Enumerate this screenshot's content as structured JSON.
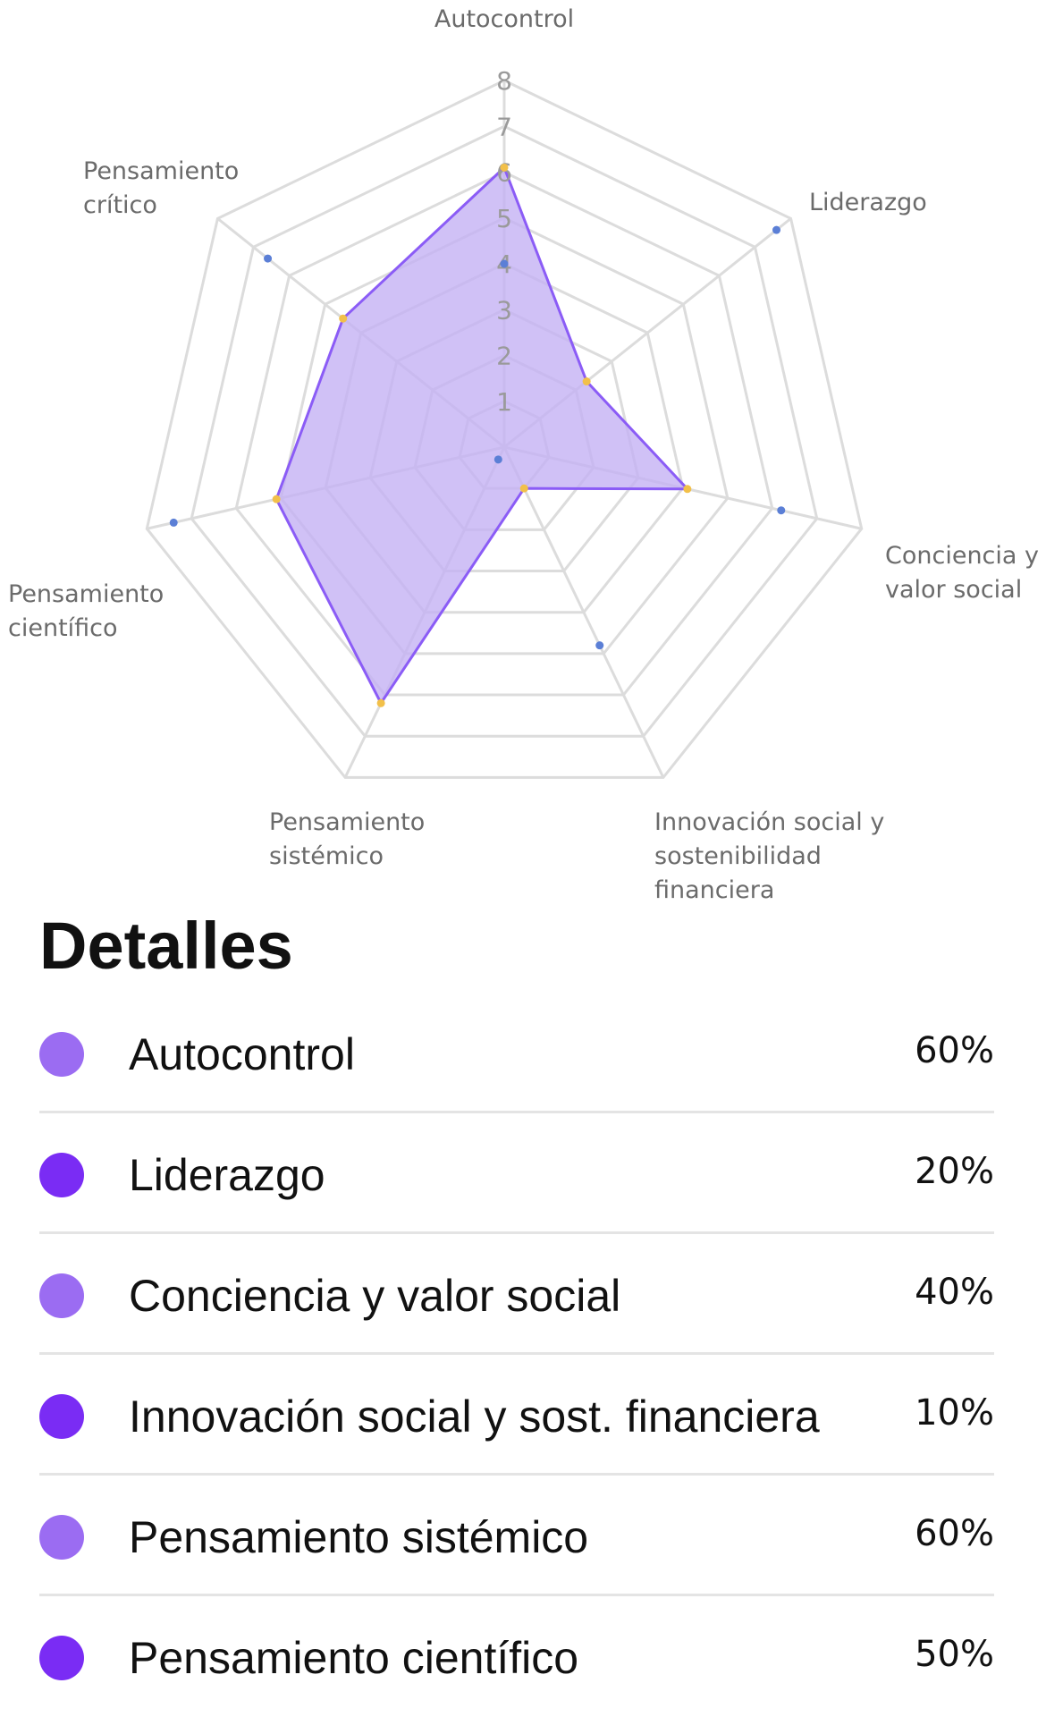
{
  "chart_data": {
    "type": "radar",
    "axes": [
      "Autocontrol",
      "Liderazgo",
      "Conciencia y valor social",
      "Innovación social y sostenibilidad financiera",
      "Pensamiento sistémico",
      "Pensamiento científico",
      "Pensamiento crítico"
    ],
    "axis_label_lines": [
      [
        "Autocontrol"
      ],
      [
        "Liderazgo"
      ],
      [
        "Conciencia y",
        "valor social"
      ],
      [
        "Innovación social y",
        "sostenibilidad",
        "financiera"
      ],
      [
        "Pensamiento",
        "sistémico"
      ],
      [
        "Pensamiento",
        "científico"
      ],
      [
        "Pensamiento",
        "crítico"
      ]
    ],
    "ticks": [
      1,
      2,
      3,
      4,
      5,
      6,
      7,
      8
    ],
    "rlim": [
      0,
      8
    ],
    "grid": true,
    "series": [
      {
        "values": [
          6.1,
          2.3,
          4.1,
          1.0,
          6.2,
          5.1,
          4.5
        ],
        "color": "#8b5cf6",
        "fill": "#c4b2f4",
        "marker_color": "#f2c04a"
      },
      {
        "values": [
          4.0,
          7.6,
          6.2,
          4.8,
          0.3,
          7.4,
          6.6
        ],
        "color": "#5b7fd6",
        "fill": "none",
        "marker_color": "#5b7fd6"
      }
    ]
  },
  "details": {
    "title": "Detalles",
    "items": [
      {
        "label": "Autocontrol",
        "value": "60%",
        "color": "#9b6cf2"
      },
      {
        "label": "Liderazgo",
        "value": "20%",
        "color": "#7a2cf4"
      },
      {
        "label": "Conciencia y valor social",
        "value": "40%",
        "color": "#9b6cf2"
      },
      {
        "label": "Innovación social y sost. financiera",
        "value": "10%",
        "color": "#7a2cf4"
      },
      {
        "label": "Pensamiento sistémico",
        "value": "60%",
        "color": "#9b6cf2"
      },
      {
        "label": "Pensamiento científico",
        "value": "50%",
        "color": "#7a2cf4"
      }
    ]
  }
}
